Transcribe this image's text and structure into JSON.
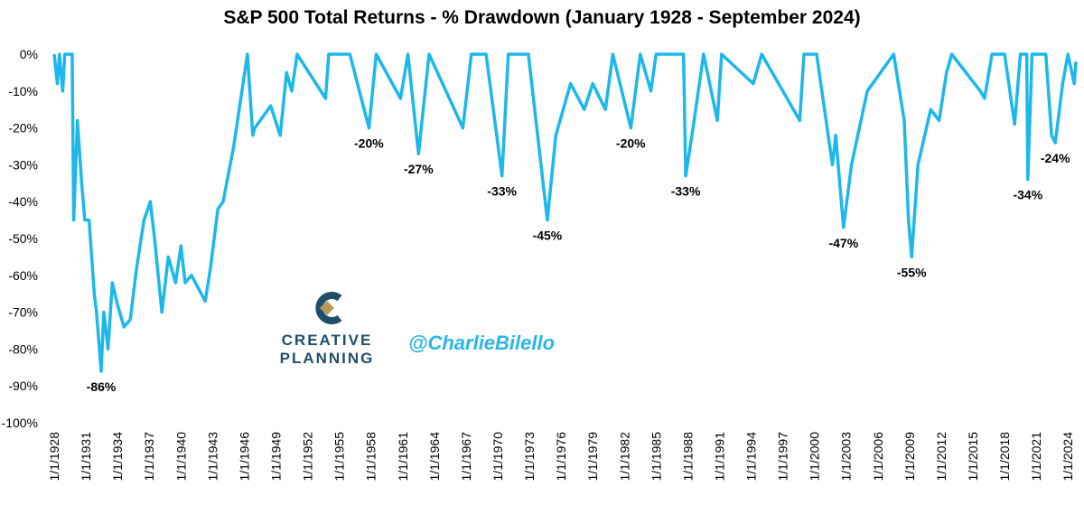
{
  "chart_data": {
    "type": "line",
    "title": "S&P 500 Total Returns - % Drawdown (January 1928 - September 2024)",
    "color": "#1cb8ec",
    "x": [
      1928,
      1928.3,
      1928.5,
      1928.8,
      1929.0,
      1929.7,
      1929.85,
      1930.2,
      1930.6,
      1930.9,
      1931.3,
      1931.8,
      1932.0,
      1932.45,
      1932.7,
      1933.1,
      1933.5,
      1934.0,
      1934.6,
      1935.2,
      1935.8,
      1936.5,
      1937.1,
      1937.5,
      1938.2,
      1938.8,
      1939.5,
      1940.0,
      1940.4,
      1941.0,
      1942.3,
      1942.8,
      1943.5,
      1944.0,
      1945.0,
      1946.3,
      1946.8,
      1947.0,
      1948.5,
      1949.4,
      1950.0,
      1950.5,
      1951.0,
      1953.7,
      1954.0,
      1956.0,
      1957.8,
      1958.5,
      1960.8,
      1961.5,
      1962.5,
      1963.5,
      1966.7,
      1967.5,
      1968.9,
      1970.4,
      1971.0,
      1972.9,
      1974.7,
      1975.5,
      1976.9,
      1978.2,
      1979.0,
      1980.2,
      1980.9,
      1982.6,
      1983.5,
      1984.5,
      1985.0,
      1987.6,
      1987.8,
      1988.5,
      1989.5,
      1990.8,
      1991.2,
      1994.2,
      1995.0,
      1998.6,
      1999.0,
      2000.2,
      2001.7,
      2002.0,
      2002.75,
      2003.5,
      2005.0,
      2007.5,
      2008.5,
      2008.9,
      2009.2,
      2009.8,
      2011.0,
      2011.8,
      2012.5,
      2013.0,
      2015.7,
      2016.1,
      2016.8,
      2018.0,
      2018.95,
      2019.5,
      2020.1,
      2020.2,
      2020.6,
      2021.9,
      2022.45,
      2022.8,
      2023.5,
      2024.0,
      2024.6,
      2024.75
    ],
    "values": [
      0,
      -8,
      0,
      -10,
      0,
      0,
      -45,
      -18,
      -35,
      -45,
      -45,
      -65,
      -70,
      -86,
      -70,
      -80,
      -62,
      -68,
      -74,
      -72,
      -58,
      -45,
      -40,
      -50,
      -70,
      -55,
      -62,
      -52,
      -62,
      -60,
      -67,
      -58,
      -42,
      -40,
      -25,
      0,
      -22,
      -20,
      -14,
      -22,
      -5,
      -10,
      0,
      -12,
      0,
      0,
      -20,
      0,
      -12,
      0,
      -27,
      0,
      -20,
      0,
      0,
      -33,
      0,
      0,
      -45,
      -22,
      -8,
      -15,
      -8,
      -15,
      0,
      -20,
      0,
      -10,
      0,
      0,
      -33,
      -20,
      0,
      -18,
      0,
      -8,
      0,
      -18,
      0,
      0,
      -30,
      -22,
      -47,
      -30,
      -10,
      0,
      -18,
      -45,
      -55,
      -30,
      -15,
      -18,
      -5,
      0,
      -10,
      -12,
      0,
      0,
      -19,
      0,
      0,
      -34,
      0,
      0,
      -22,
      -24,
      -8,
      0,
      -8,
      -2
    ],
    "xlim": [
      1928,
      2024.75
    ],
    "xticks": [
      {
        "value": 1928,
        "label": "1/1/1928"
      },
      {
        "value": 1931,
        "label": "1/1/1931"
      },
      {
        "value": 1934,
        "label": "1/1/1934"
      },
      {
        "value": 1937,
        "label": "1/1/1937"
      },
      {
        "value": 1940,
        "label": "1/1/1940"
      },
      {
        "value": 1943,
        "label": "1/1/1943"
      },
      {
        "value": 1946,
        "label": "1/1/1946"
      },
      {
        "value": 1949,
        "label": "1/1/1949"
      },
      {
        "value": 1952,
        "label": "1/1/1952"
      },
      {
        "value": 1955,
        "label": "1/1/1955"
      },
      {
        "value": 1958,
        "label": "1/1/1958"
      },
      {
        "value": 1961,
        "label": "1/1/1961"
      },
      {
        "value": 1964,
        "label": "1/1/1964"
      },
      {
        "value": 1967,
        "label": "1/1/1967"
      },
      {
        "value": 1970,
        "label": "1/1/1970"
      },
      {
        "value": 1973,
        "label": "1/1/1973"
      },
      {
        "value": 1976,
        "label": "1/1/1976"
      },
      {
        "value": 1979,
        "label": "1/1/1979"
      },
      {
        "value": 1982,
        "label": "1/1/1982"
      },
      {
        "value": 1985,
        "label": "1/1/1985"
      },
      {
        "value": 1988,
        "label": "1/1/1988"
      },
      {
        "value": 1991,
        "label": "1/1/1991"
      },
      {
        "value": 1994,
        "label": "1/1/1994"
      },
      {
        "value": 1997,
        "label": "1/1/1997"
      },
      {
        "value": 2000,
        "label": "1/1/2000"
      },
      {
        "value": 2003,
        "label": "1/1/2003"
      },
      {
        "value": 2006,
        "label": "1/1/2006"
      },
      {
        "value": 2009,
        "label": "1/1/2009"
      },
      {
        "value": 2012,
        "label": "1/1/2012"
      },
      {
        "value": 2015,
        "label": "1/1/2015"
      },
      {
        "value": 2018,
        "label": "1/1/2018"
      },
      {
        "value": 2021,
        "label": "1/1/2021"
      },
      {
        "value": 2024,
        "label": "1/1/2024"
      }
    ],
    "ylim": [
      -100,
      0
    ],
    "yticks": [
      {
        "value": 0,
        "label": "0%"
      },
      {
        "value": -10,
        "label": "-10%"
      },
      {
        "value": -20,
        "label": "-20%"
      },
      {
        "value": -30,
        "label": "-30%"
      },
      {
        "value": -40,
        "label": "-40%"
      },
      {
        "value": -50,
        "label": "-50%"
      },
      {
        "value": -60,
        "label": "-60%"
      },
      {
        "value": -70,
        "label": "-70%"
      },
      {
        "value": -80,
        "label": "-80%"
      },
      {
        "value": -90,
        "label": "-90%"
      },
      {
        "value": -100,
        "label": "-100%"
      }
    ],
    "annotations": [
      {
        "text": "-86%",
        "x": 1932.45,
        "y": -86
      },
      {
        "text": "-20%",
        "x": 1957.8,
        "y": -20
      },
      {
        "text": "-27%",
        "x": 1962.5,
        "y": -27
      },
      {
        "text": "-33%",
        "x": 1970.4,
        "y": -33
      },
      {
        "text": "-45%",
        "x": 1974.7,
        "y": -45
      },
      {
        "text": "-20%",
        "x": 1982.6,
        "y": -20
      },
      {
        "text": "-33%",
        "x": 1987.8,
        "y": -33
      },
      {
        "text": "-47%",
        "x": 2002.75,
        "y": -47
      },
      {
        "text": "-55%",
        "x": 2009.2,
        "y": -55
      },
      {
        "text": "-34%",
        "x": 2020.2,
        "y": -34
      },
      {
        "text": "-24%",
        "x": 2022.8,
        "y": -24
      }
    ],
    "logo_text": [
      "CREATIVE",
      "PLANNING"
    ],
    "handle": "@CharlieBilello"
  }
}
